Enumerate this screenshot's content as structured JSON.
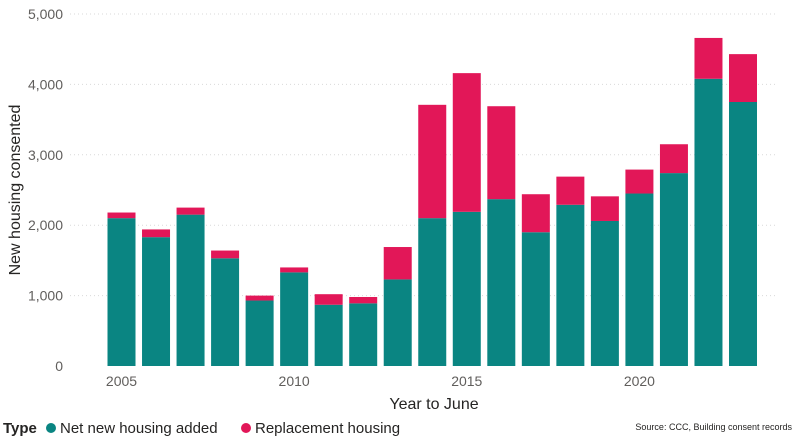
{
  "chart_data": {
    "type": "bar",
    "stacked": true,
    "title": "",
    "xlabel": "Year to June",
    "ylabel": "New housing consented",
    "x": [
      2005,
      2006,
      2007,
      2008,
      2009,
      2010,
      2011,
      2012,
      2013,
      2014,
      2015,
      2016,
      2017,
      2018,
      2019,
      2020,
      2021,
      2022,
      2023
    ],
    "x_ticks": [
      2005,
      2010,
      2015,
      2020
    ],
    "x_tick_labels": [
      "2005",
      "2010",
      "2015",
      "2020"
    ],
    "ylim": [
      0,
      5000
    ],
    "y_ticks": [
      0,
      1000,
      2000,
      3000,
      4000,
      5000
    ],
    "y_tick_labels": [
      "0",
      "1,000",
      "2,000",
      "3,000",
      "4,000",
      "5,000"
    ],
    "grid": true,
    "legend_position": "bottom-left",
    "legend_title": "Type",
    "series": [
      {
        "name": "Net new housing added",
        "color": "#0a8582",
        "values": [
          2100,
          1830,
          2150,
          1530,
          930,
          1330,
          870,
          890,
          1230,
          2100,
          2190,
          2370,
          1900,
          2290,
          2060,
          2450,
          2740,
          4080,
          3750
        ]
      },
      {
        "name": "Replacement housing",
        "color": "#e21758",
        "values": [
          80,
          110,
          100,
          110,
          70,
          70,
          150,
          90,
          460,
          1610,
          1970,
          1320,
          540,
          400,
          350,
          340,
          410,
          580,
          680
        ]
      }
    ]
  },
  "source": "Source: CCC, Building consent records"
}
